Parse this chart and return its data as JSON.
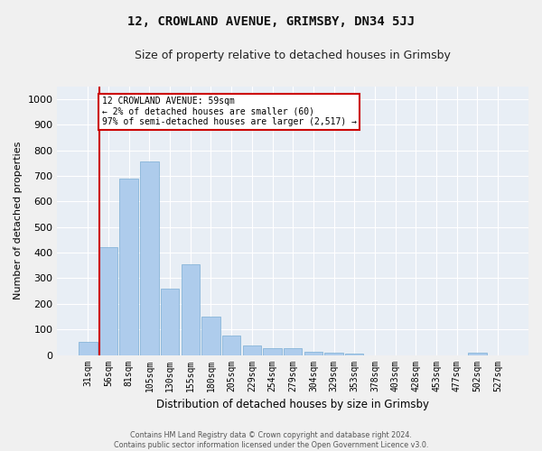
{
  "title": "12, CROWLAND AVENUE, GRIMSBY, DN34 5JJ",
  "subtitle": "Size of property relative to detached houses in Grimsby",
  "xlabel": "Distribution of detached houses by size in Grimsby",
  "ylabel": "Number of detached properties",
  "bar_color": "#aeccec",
  "bar_edge_color": "#7aadd4",
  "background_color": "#e8eef5",
  "grid_color": "#ffffff",
  "annotation_line_color": "#cc0000",
  "annotation_box_color": "#cc0000",
  "fig_background": "#f0f0f0",
  "categories": [
    "31sqm",
    "56sqm",
    "81sqm",
    "105sqm",
    "130sqm",
    "155sqm",
    "180sqm",
    "205sqm",
    "229sqm",
    "254sqm",
    "279sqm",
    "304sqm",
    "329sqm",
    "353sqm",
    "378sqm",
    "403sqm",
    "428sqm",
    "453sqm",
    "477sqm",
    "502sqm",
    "527sqm"
  ],
  "values": [
    50,
    420,
    690,
    755,
    260,
    355,
    150,
    75,
    37,
    25,
    25,
    12,
    10,
    5,
    0,
    0,
    0,
    0,
    0,
    10,
    0
  ],
  "ylim": [
    0,
    1050
  ],
  "yticks": [
    0,
    100,
    200,
    300,
    400,
    500,
    600,
    700,
    800,
    900,
    1000
  ],
  "annotation_text_line1": "12 CROWLAND AVENUE: 59sqm",
  "annotation_text_line2": "← 2% of detached houses are smaller (60)",
  "annotation_text_line3": "97% of semi-detached houses are larger (2,517) →",
  "annotation_bar_index": 1,
  "footer_line1": "Contains HM Land Registry data © Crown copyright and database right 2024.",
  "footer_line2": "Contains public sector information licensed under the Open Government Licence v3.0."
}
